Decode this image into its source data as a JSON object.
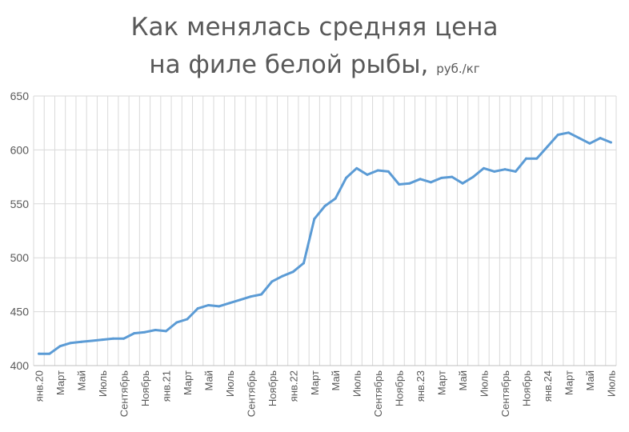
{
  "chart_data": {
    "type": "line",
    "title_line1": "Как менялась средняя цена",
    "title_line2": "на филе белой рыбы,",
    "unit": "руб./кг",
    "xlabel": "",
    "ylabel": "",
    "ylim": [
      400,
      650
    ],
    "yticks": [
      400,
      450,
      500,
      550,
      600,
      650
    ],
    "grid": true,
    "legend": "none",
    "line_color": "#5b9bd5",
    "grid_color": "#d9d9d9",
    "x_tick_labels": [
      "янв.20",
      "Март",
      "Май",
      "Июль",
      "Сентябрь",
      "Ноябрь",
      "янв.21",
      "Март",
      "Май",
      "Июль",
      "Сентябрь",
      "Ноябрь",
      "янв.22",
      "Март",
      "Май",
      "Июль",
      "Сентябрь",
      "Ноябрь",
      "янв.23",
      "Март",
      "Май",
      "Июль",
      "Сентябрь",
      "Ноябрь",
      "янв.24",
      "Март",
      "Май",
      "Июль"
    ],
    "x": [
      "2020-01",
      "2020-02",
      "2020-03",
      "2020-04",
      "2020-05",
      "2020-06",
      "2020-07",
      "2020-08",
      "2020-09",
      "2020-10",
      "2020-11",
      "2020-12",
      "2021-01",
      "2021-02",
      "2021-03",
      "2021-04",
      "2021-05",
      "2021-06",
      "2021-07",
      "2021-08",
      "2021-09",
      "2021-10",
      "2021-11",
      "2021-12",
      "2022-01",
      "2022-02",
      "2022-03",
      "2022-04",
      "2022-05",
      "2022-06",
      "2022-07",
      "2022-08",
      "2022-09",
      "2022-10",
      "2022-11",
      "2022-12",
      "2023-01",
      "2023-02",
      "2023-03",
      "2023-04",
      "2023-05",
      "2023-06",
      "2023-07",
      "2023-08",
      "2023-09",
      "2023-10",
      "2023-11",
      "2023-12",
      "2024-01",
      "2024-02",
      "2024-03",
      "2024-04",
      "2024-05",
      "2024-06",
      "2024-07"
    ],
    "values": [
      411,
      411,
      418,
      421,
      422,
      423,
      424,
      425,
      425,
      430,
      431,
      433,
      432,
      440,
      443,
      453,
      456,
      455,
      458,
      461,
      464,
      466,
      478,
      483,
      487,
      495,
      536,
      548,
      555,
      574,
      583,
      577,
      581,
      580,
      568,
      569,
      573,
      570,
      574,
      575,
      569,
      575,
      583,
      580,
      582,
      580,
      592,
      592,
      603,
      614,
      616,
      611,
      606,
      611,
      607
    ]
  }
}
